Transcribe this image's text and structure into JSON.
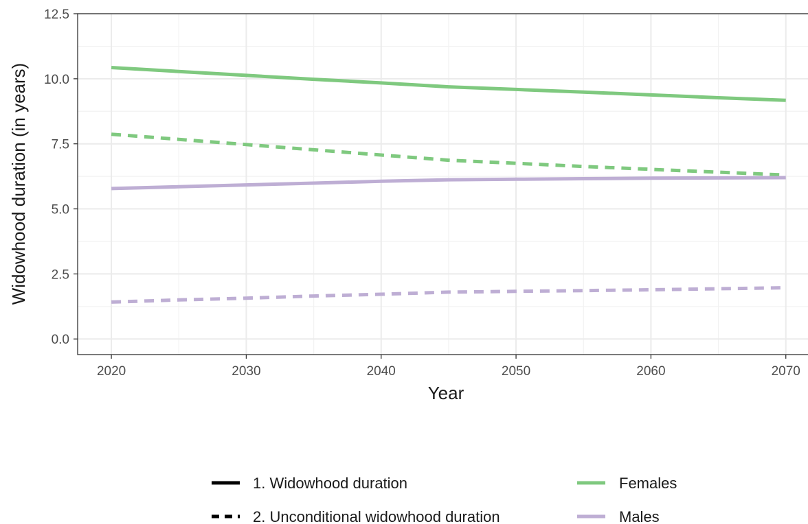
{
  "chart_data": {
    "type": "line",
    "xlabel": "Year",
    "ylabel": "Widowhood duration (in years)",
    "xlim": [
      2017.5,
      2072
    ],
    "ylim": [
      -0.6,
      12.5
    ],
    "x_ticks": [
      2020,
      2030,
      2040,
      2050,
      2060,
      2070
    ],
    "x_tick_labels": [
      "2020",
      "2030",
      "2040",
      "2050",
      "2060",
      "2070"
    ],
    "y_ticks": [
      0,
      2.5,
      5,
      7.5,
      10,
      12.5
    ],
    "y_tick_labels": [
      "0.0",
      "2.5",
      "5.0",
      "7.5",
      "10.0",
      "12.5"
    ],
    "grid": true,
    "legend_position": "bottom",
    "x": [
      2020,
      2025,
      2030,
      2035,
      2040,
      2045,
      2050,
      2055,
      2060,
      2065,
      2070
    ],
    "series": [
      {
        "sex": "Females",
        "measure": "1. Widowhood duration",
        "values": [
          10.43,
          10.28,
          10.13,
          9.98,
          9.84,
          9.69,
          9.59,
          9.49,
          9.38,
          9.27,
          9.17
        ]
      },
      {
        "sex": "Females",
        "measure": "2. Unconditional widowhood duration",
        "values": [
          7.87,
          7.67,
          7.47,
          7.27,
          7.07,
          6.87,
          6.75,
          6.63,
          6.52,
          6.41,
          6.3
        ]
      },
      {
        "sex": "Males",
        "measure": "1. Widowhood duration",
        "values": [
          5.78,
          5.85,
          5.92,
          5.99,
          6.06,
          6.12,
          6.14,
          6.16,
          6.18,
          6.19,
          6.2
        ]
      },
      {
        "sex": "Males",
        "measure": "2. Unconditional widowhood duration",
        "values": [
          1.42,
          1.5,
          1.57,
          1.65,
          1.72,
          1.8,
          1.83,
          1.86,
          1.89,
          1.93,
          1.97
        ]
      }
    ],
    "colors": {
      "Females": "#7fc97f",
      "Males": "#beaed4",
      "legend_key": "#000000"
    },
    "linetypes": {
      "1. Widowhood duration": "solid",
      "2. Unconditional widowhood duration": "dashed"
    },
    "legend": {
      "linetype_entries": [
        {
          "label": "1. Widowhood duration",
          "linetype": "solid"
        },
        {
          "label": "2. Unconditional widowhood duration",
          "linetype": "dashed"
        }
      ],
      "color_entries": [
        {
          "label": "Females",
          "color": "#7fc97f"
        },
        {
          "label": "Males",
          "color": "#beaed4"
        }
      ]
    }
  }
}
